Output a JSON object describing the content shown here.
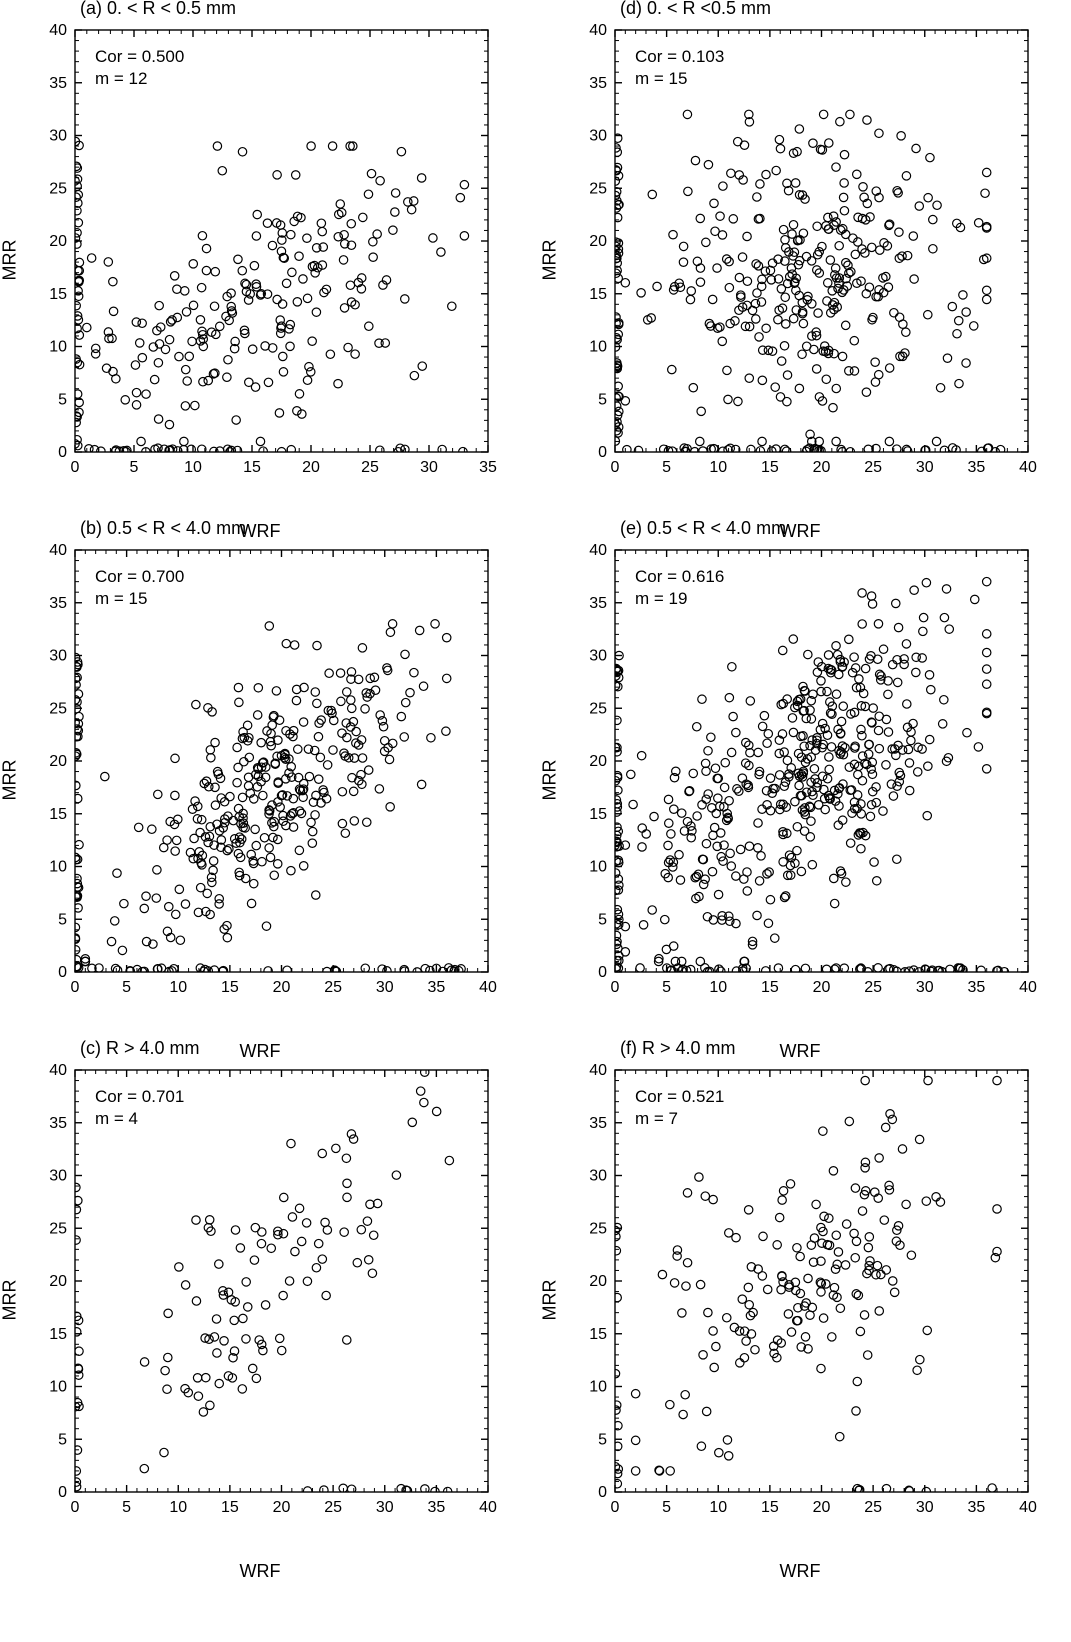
{
  "figure": {
    "background_color": "#ffffff",
    "cols": 2,
    "rows": 3,
    "font_family": "Arial, Helvetica, sans-serif"
  },
  "common_axis": {
    "xlabel": "WRF",
    "ylabel": "MRR",
    "label_fontsize": 18,
    "title_fontsize": 18,
    "annot_fontsize": 17,
    "tick_fontsize": 16,
    "axis_color": "#000000",
    "tick_len_major": 7,
    "tick_len_minor": 4,
    "axis_width": 1.4,
    "marker": {
      "shape": "circle",
      "radius": 4.2,
      "stroke": "#000000",
      "stroke_width": 1.2,
      "fill": "none"
    }
  },
  "panels": [
    {
      "id": "a",
      "title": "(a) 0. < R < 0.5 mm",
      "cor": "Cor = 0.500",
      "m": "m = 12",
      "xlim": [
        0,
        35
      ],
      "ylim": [
        0,
        40
      ],
      "xticks": [
        0,
        5,
        10,
        15,
        20,
        25,
        30,
        35
      ],
      "yticks": [
        0,
        5,
        10,
        15,
        20,
        25,
        30,
        35,
        40
      ],
      "xminor_step": 1,
      "yminor_step": 1,
      "n_points": 290,
      "cluster": {
        "n_yaxis": 40,
        "n_xaxis": 35,
        "n_scatter": 215,
        "scatter_box": [
          1,
          33,
          1,
          29
        ],
        "correlation": 0.5
      }
    },
    {
      "id": "d",
      "title": "(d) 0. < R <0.5 mm",
      "cor": "Cor = 0.103",
      "m": "m = 15",
      "xlim": [
        0,
        40
      ],
      "ylim": [
        0,
        40
      ],
      "xticks": [
        0,
        5,
        10,
        15,
        20,
        25,
        30,
        35,
        40
      ],
      "yticks": [
        0,
        5,
        10,
        15,
        20,
        25,
        30,
        35,
        40
      ],
      "xminor_step": 1,
      "yminor_step": 1,
      "n_points": 430,
      "cluster": {
        "n_yaxis": 55,
        "n_xaxis": 50,
        "n_scatter": 325,
        "scatter_box": [
          1,
          36,
          1,
          32
        ],
        "correlation": 0.1
      }
    },
    {
      "id": "b",
      "title": "(b) 0.5 < R < 4.0 mm",
      "cor": "Cor = 0.700",
      "m": "m = 15",
      "xlim": [
        0,
        40
      ],
      "ylim": [
        0,
        40
      ],
      "xticks": [
        0,
        5,
        10,
        15,
        20,
        25,
        30,
        35,
        40
      ],
      "yticks": [
        0,
        5,
        10,
        15,
        20,
        25,
        30,
        35,
        40
      ],
      "xminor_step": 1,
      "yminor_step": 1,
      "n_points": 420,
      "cluster": {
        "n_yaxis": 45,
        "n_xaxis": 45,
        "n_scatter": 330,
        "scatter_box": [
          1,
          36,
          1,
          33
        ],
        "correlation": 0.7
      }
    },
    {
      "id": "e",
      "title": "(e) 0.5 < R < 4.0 mm",
      "cor": "Cor = 0.616",
      "m": "m = 19",
      "xlim": [
        0,
        40
      ],
      "ylim": [
        0,
        40
      ],
      "xticks": [
        0,
        5,
        10,
        15,
        20,
        25,
        30,
        35,
        40
      ],
      "yticks": [
        0,
        5,
        10,
        15,
        20,
        25,
        30,
        35,
        40
      ],
      "xminor_step": 1,
      "yminor_step": 1,
      "n_points": 560,
      "cluster": {
        "n_yaxis": 55,
        "n_xaxis": 55,
        "n_scatter": 450,
        "scatter_box": [
          1,
          36,
          1,
          37
        ],
        "correlation": 0.62
      }
    },
    {
      "id": "c",
      "title": "(c) R > 4.0 mm",
      "cor": "Cor = 0.701",
      "m": "m = 4",
      "xlim": [
        0,
        40
      ],
      "ylim": [
        0,
        40
      ],
      "xticks": [
        0,
        5,
        10,
        15,
        20,
        25,
        30,
        35,
        40
      ],
      "yticks": [
        0,
        5,
        10,
        15,
        20,
        25,
        30,
        35,
        40
      ],
      "xminor_step": 1,
      "yminor_step": 1,
      "n_points": 130,
      "cluster": {
        "n_yaxis": 18,
        "n_xaxis": 10,
        "n_scatter": 102,
        "scatter_box": [
          2,
          37,
          2,
          40
        ],
        "correlation": 0.7,
        "xaxis_start": 12
      }
    },
    {
      "id": "f",
      "title": "(f) R > 4.0 mm",
      "cor": "Cor = 0.521",
      "m": "m = 7",
      "xlim": [
        0,
        40
      ],
      "ylim": [
        0,
        40
      ],
      "xticks": [
        0,
        5,
        10,
        15,
        20,
        25,
        30,
        35,
        40
      ],
      "yticks": [
        0,
        5,
        10,
        15,
        20,
        25,
        30,
        35,
        40
      ],
      "xminor_step": 1,
      "yminor_step": 1,
      "n_points": 200,
      "cluster": {
        "n_yaxis": 14,
        "n_xaxis": 8,
        "n_scatter": 178,
        "scatter_box": [
          2,
          37,
          2,
          39
        ],
        "correlation": 0.52,
        "xaxis_start": 17
      }
    }
  ]
}
